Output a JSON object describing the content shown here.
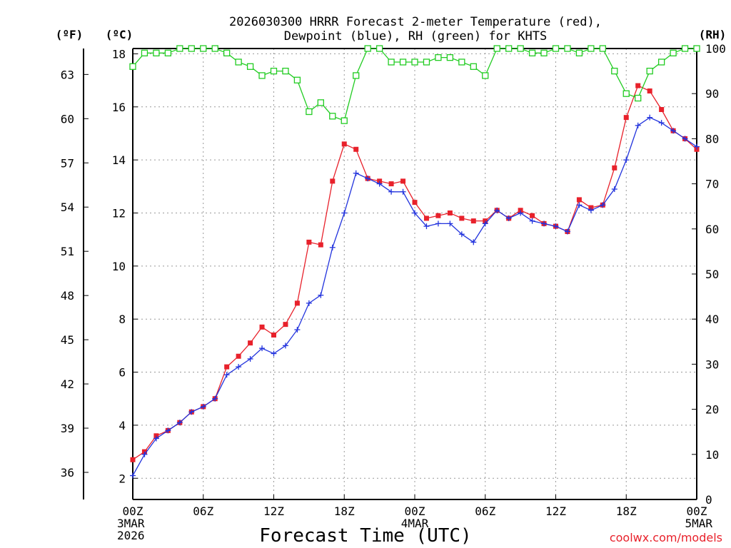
{
  "title_line1": "2026030300 HRRR Forecast 2-meter Temperature (red),",
  "title_line2": "Dewpoint (blue), RH (green) for KHTS",
  "unit_f": "(ºF)",
  "unit_c": "(ºC)",
  "unit_rh": "(RH)",
  "xlabel": "Forecast Time (UTC)",
  "credit": "coolwx.com/models",
  "colors": {
    "temperature": "#e8212b",
    "dewpoint": "#2233dd",
    "rh": "#22cc22",
    "grid": "#999999"
  },
  "chart_data": {
    "type": "line",
    "title": "2026030300 HRRR Forecast 2-meter Temperature (red), Dewpoint (blue), RH (green) for KHTS",
    "xlabel": "Forecast Time (UTC)",
    "ylabel_left_c": "(ºC)",
    "ylabel_left_f": "(ºF)",
    "ylabel_right": "(RH)",
    "grid": true,
    "x_hours": [
      0,
      1,
      2,
      3,
      4,
      5,
      6,
      7,
      8,
      9,
      10,
      11,
      12,
      13,
      14,
      15,
      16,
      17,
      18,
      19,
      20,
      21,
      22,
      23,
      24,
      25,
      26,
      27,
      28,
      29,
      30,
      31,
      32,
      33,
      34,
      35,
      36,
      37,
      38,
      39,
      40,
      41,
      42,
      43,
      44,
      45,
      46,
      47,
      48
    ],
    "x_ticks": [
      {
        "hour": 0,
        "lines": [
          "00Z",
          "3MAR",
          "2026"
        ]
      },
      {
        "hour": 6,
        "lines": [
          "06Z"
        ]
      },
      {
        "hour": 12,
        "lines": [
          "12Z"
        ]
      },
      {
        "hour": 18,
        "lines": [
          "18Z"
        ]
      },
      {
        "hour": 24,
        "lines": [
          "00Z",
          "4MAR"
        ]
      },
      {
        "hour": 30,
        "lines": [
          "06Z"
        ]
      },
      {
        "hour": 36,
        "lines": [
          "12Z"
        ]
      },
      {
        "hour": 42,
        "lines": [
          "18Z"
        ]
      },
      {
        "hour": 48,
        "lines": [
          "00Z",
          "5MAR"
        ]
      }
    ],
    "ylim_c": [
      1.2,
      18.2
    ],
    "yticks_c": [
      2,
      4,
      6,
      8,
      10,
      12,
      14,
      16,
      18
    ],
    "yticks_f": [
      36,
      39,
      42,
      45,
      48,
      51,
      54,
      57,
      60,
      63
    ],
    "ylim_rh": [
      0,
      100
    ],
    "yticks_rh": [
      0,
      10,
      20,
      30,
      40,
      50,
      60,
      70,
      80,
      90,
      100
    ],
    "series": [
      {
        "name": "Temperature",
        "axis": "c",
        "marker": "filled-square",
        "values": [
          2.7,
          3.0,
          3.6,
          3.8,
          4.1,
          4.5,
          4.7,
          5.0,
          6.2,
          6.6,
          7.1,
          7.7,
          7.4,
          7.8,
          8.6,
          10.9,
          10.8,
          13.2,
          14.6,
          14.4,
          13.3,
          13.2,
          13.1,
          13.2,
          12.4,
          11.8,
          11.9,
          12.0,
          11.8,
          11.7,
          11.7,
          12.1,
          11.8,
          12.1,
          11.9,
          11.6,
          11.5,
          11.3,
          12.5,
          12.2,
          12.3,
          13.7,
          15.6,
          16.8,
          16.6,
          15.9,
          15.1,
          14.8,
          14.4
        ]
      },
      {
        "name": "Dewpoint",
        "axis": "c",
        "marker": "plus",
        "values": [
          2.1,
          2.9,
          3.5,
          3.8,
          4.1,
          4.5,
          4.7,
          5.0,
          5.9,
          6.2,
          6.5,
          6.9,
          6.7,
          7.0,
          7.6,
          8.6,
          8.9,
          10.7,
          12.0,
          13.5,
          13.3,
          13.1,
          12.8,
          12.8,
          12.0,
          11.5,
          11.6,
          11.6,
          11.2,
          10.9,
          11.6,
          12.1,
          11.8,
          12.0,
          11.7,
          11.6,
          11.5,
          11.3,
          12.3,
          12.1,
          12.3,
          12.9,
          14.0,
          15.3,
          15.6,
          15.4,
          15.1,
          14.8,
          14.5
        ]
      },
      {
        "name": "RH",
        "axis": "rh",
        "marker": "open-square",
        "values": [
          96,
          99,
          99,
          99,
          100,
          100,
          100,
          100,
          99,
          97,
          96,
          94,
          95,
          95,
          93,
          86,
          88,
          85,
          84,
          94,
          100,
          100,
          97,
          97,
          97,
          97,
          98,
          98,
          97,
          96,
          94,
          100,
          100,
          100,
          99,
          99,
          100,
          100,
          99,
          100,
          100,
          95,
          90,
          89,
          95,
          97,
          99,
          100,
          100
        ]
      }
    ]
  }
}
